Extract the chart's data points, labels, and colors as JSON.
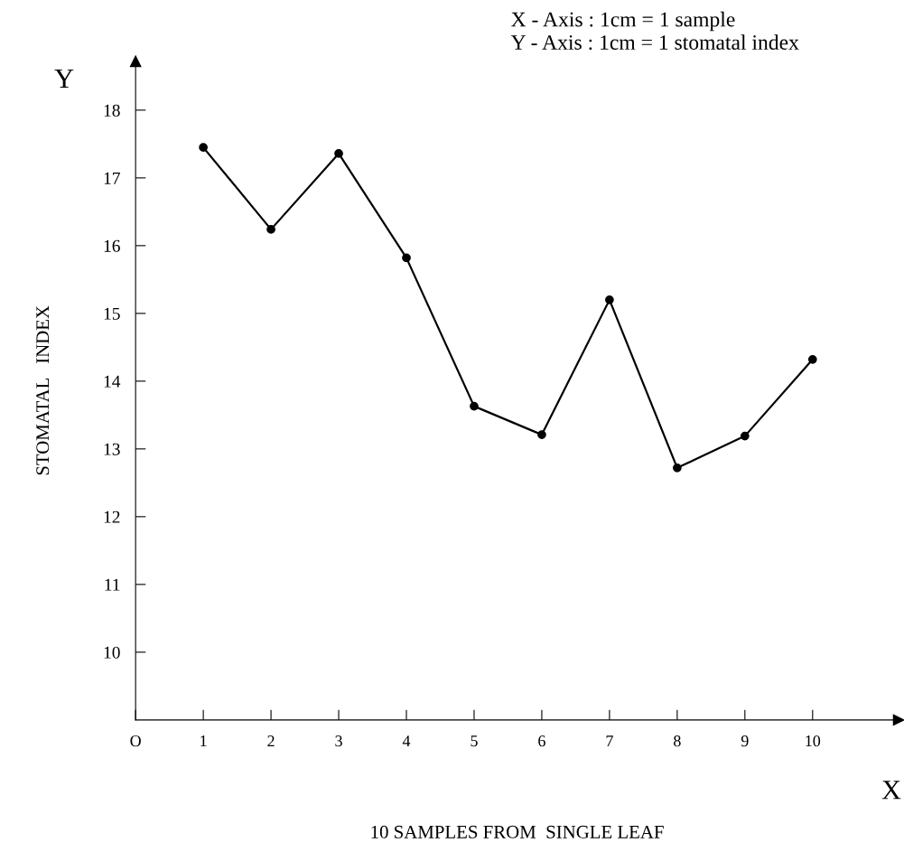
{
  "chart_data": {
    "type": "line",
    "xlabel": "10 SAMPLES FROM  SINGLE LEAF",
    "ylabel": "STOMATAL   INDEX",
    "x": [
      1,
      2,
      3,
      4,
      5,
      6,
      7,
      8,
      9,
      10
    ],
    "series": [
      {
        "color": "#000000",
        "values": [
          17.45,
          16.24,
          17.36,
          15.82,
          13.63,
          13.21,
          15.2,
          12.72,
          13.19,
          14.32
        ]
      }
    ],
    "xlim": [
      0,
      11.27
    ],
    "ylim": [
      9,
      18.72
    ],
    "xticks": [
      {
        "value": 0,
        "label": "O"
      },
      1,
      2,
      3,
      4,
      5,
      6,
      7,
      8,
      9,
      10
    ],
    "yticks": [
      10,
      11,
      12,
      13,
      14,
      15,
      16,
      17,
      18
    ],
    "marker": "circle",
    "line_style": "solid",
    "grid": false,
    "legend": false,
    "annotations": [
      "X - Axis : 1cm = 1 sample",
      "Y - Axis : 1cm = 1 stomatal index",
      "Y",
      "X"
    ]
  }
}
